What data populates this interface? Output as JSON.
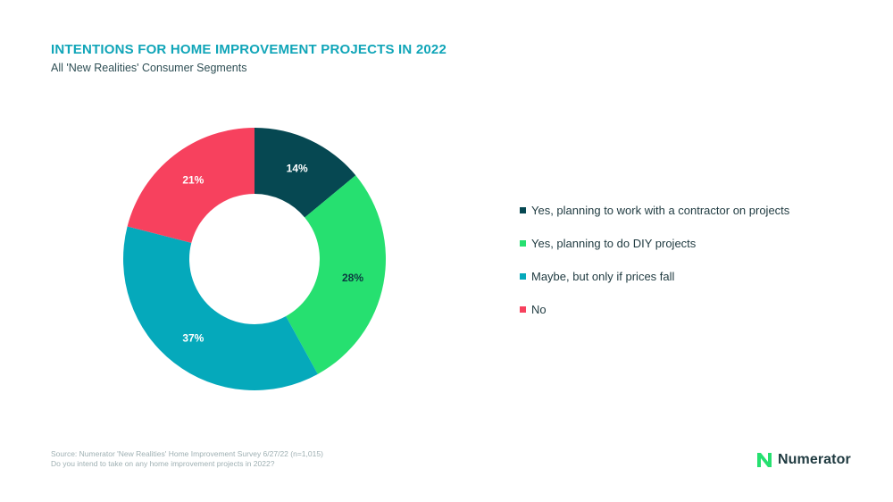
{
  "header": {
    "title": "INTENTIONS FOR HOME IMPROVEMENT PROJECTS IN 2022",
    "subtitle": "All 'New Realities' Consumer Segments"
  },
  "chart_data": {
    "type": "pie",
    "variant": "donut",
    "title": "INTENTIONS FOR HOME IMPROVEMENT PROJECTS IN 2022",
    "subtitle": "All 'New Realities' Consumer Segments",
    "legend_position": "right",
    "slices": [
      {
        "label": "Yes, planning to work with a contractor on projects",
        "value": 14,
        "display": "14%",
        "color": "#064852"
      },
      {
        "label": "Yes, planning to do DIY projects",
        "value": 28,
        "display": "28%",
        "color": "#26e070"
      },
      {
        "label": "Maybe, but only if prices fall",
        "value": 37,
        "display": "37%",
        "color": "#05a9bb"
      },
      {
        "label": "No",
        "value": 21,
        "display": "21%",
        "color": "#f7415e"
      }
    ]
  },
  "footer": {
    "source_line1": "Source: Numerator 'New Realities' Home Improvement Survey 6/27/22 (n=1,015)",
    "source_line2": "Do you intend to take on any home improvement projects in 2022?",
    "brand_name": "Numerator",
    "brand_icon": "numerator-logo-icon",
    "brand_color": "#26e070"
  }
}
